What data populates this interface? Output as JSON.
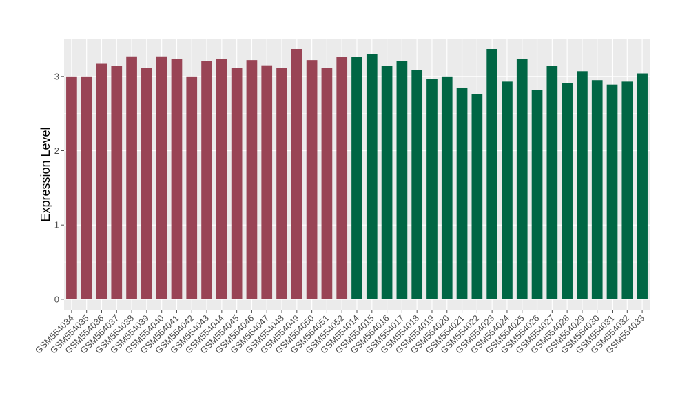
{
  "chart_data": {
    "type": "bar",
    "title": "",
    "xlabel": "",
    "ylabel": "Expression Level",
    "ylim": [
      -0.15,
      3.5
    ],
    "yticks": [
      0,
      1,
      2,
      3
    ],
    "grid": true,
    "legend": "none",
    "categories": [
      "GSM554034",
      "GSM554035",
      "GSM554036",
      "GSM554037",
      "GSM554038",
      "GSM554039",
      "GSM554040",
      "GSM554041",
      "GSM554042",
      "GSM554043",
      "GSM554044",
      "GSM554045",
      "GSM554046",
      "GSM554047",
      "GSM554048",
      "GSM554049",
      "GSM554050",
      "GSM554051",
      "GSM554052",
      "GSM554014",
      "GSM554015",
      "GSM554016",
      "GSM554017",
      "GSM554018",
      "GSM554019",
      "GSM554020",
      "GSM554021",
      "GSM554022",
      "GSM554023",
      "GSM554024",
      "GSM554025",
      "GSM554026",
      "GSM554027",
      "GSM554028",
      "GSM554029",
      "GSM554030",
      "GSM554031",
      "GSM554032",
      "GSM554033"
    ],
    "values": [
      3.0,
      3.0,
      3.17,
      3.14,
      3.27,
      3.11,
      3.27,
      3.24,
      3.0,
      3.21,
      3.24,
      3.11,
      3.22,
      3.15,
      3.11,
      3.37,
      3.22,
      3.11,
      3.26,
      3.26,
      3.3,
      3.14,
      3.21,
      3.09,
      2.97,
      3.0,
      2.85,
      2.76,
      3.37,
      2.93,
      3.24,
      2.82,
      3.14,
      2.91,
      3.07,
      2.95,
      2.89,
      2.93,
      3.04
    ],
    "group_sizes": [
      19,
      20
    ],
    "colors": {
      "group1": "#994455",
      "group2": "#006644",
      "panel_background": "#ebebeb",
      "grid": "#ffffff",
      "tick": "#4d4d4d"
    }
  }
}
